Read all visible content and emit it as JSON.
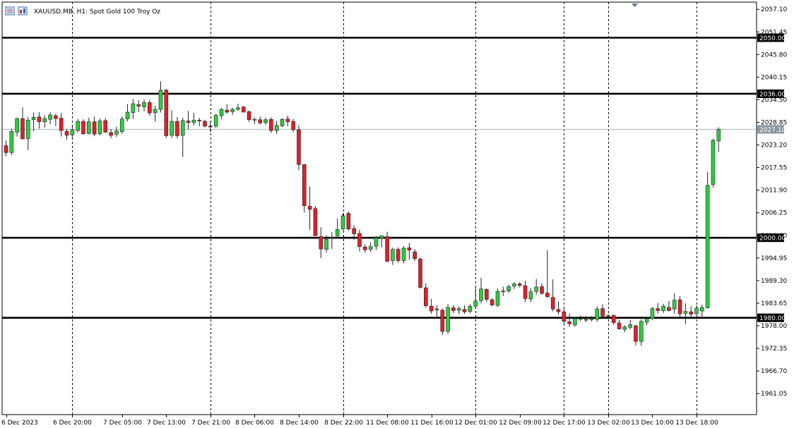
{
  "header": {
    "symbol_label": "XAUUSD.MB, H1:  Spot Gold 100 Troy Oz"
  },
  "icons": [
    "chart-window-icon",
    "chart-properties-icon"
  ],
  "colors": {
    "bull": "#2ecc40",
    "bear": "#e0202a",
    "wick": "#222222",
    "grid": "#000000",
    "current_price_line": "#a8b4bc",
    "current_price_tag": "#8a96a0",
    "level_line": "#000000"
  },
  "chart_data": {
    "type": "candlestick",
    "title": "XAUUSD.MB, H1:  Spot Gold 100 Troy Oz",
    "ylim": [
      1955.8,
      2058.9
    ],
    "y_ticks": [
      2057.1,
      2051.45,
      2045.8,
      2040.15,
      2034.5,
      2028.85,
      2023.2,
      2017.55,
      2011.9,
      2006.25,
      2000.6,
      1994.95,
      1989.3,
      1983.65,
      1978.0,
      1972.35,
      1966.7,
      1961.05
    ],
    "y_tick_labels": [
      "2057.10",
      "2051.45",
      "2045.80",
      "2040.15",
      "2034.50",
      "2028.85",
      "2023.20",
      "2017.55",
      "2011.90",
      "2006.25",
      "2000.60",
      "1994.95",
      "1989.30",
      "1983.65",
      "1978.00",
      "1972.35",
      "1966.70",
      "1961.05"
    ],
    "x_labels": [
      "6 Dec 2023",
      "6 Dec 20:00",
      "7 Dec 05:00",
      "7 Dec 13:00",
      "7 Dec 21:00",
      "8 Dec 06:00",
      "8 Dec 14:00",
      "8 Dec 22:00",
      "11 Dec 08:00",
      "11 Dec 16:00",
      "12 Dec 01:00",
      "12 Dec 09:00",
      "12 Dec 17:00",
      "13 Dec 02:00",
      "13 Dec 10:00",
      "13 Dec 18:00"
    ],
    "x_label_bars": [
      0,
      12,
      21,
      29,
      37,
      45,
      53,
      61,
      69,
      77,
      85,
      93,
      101,
      109,
      117,
      125
    ],
    "vertical_grid_bars": [
      12,
      37,
      61,
      85,
      101,
      109,
      125
    ],
    "horizontal_levels": [
      {
        "price": 2050.0,
        "label": "2050.00"
      },
      {
        "price": 2036.0,
        "label": "2036.00"
      },
      {
        "price": 2000.0,
        "label": "2000.00"
      },
      {
        "price": 1980.0,
        "label": "1980.00"
      }
    ],
    "current_price": {
      "price": 2027.1,
      "label": "2027.10"
    },
    "ohlc": [
      [
        2023.0,
        2024.3,
        2020.4,
        2021.3
      ],
      [
        2021.3,
        2027.3,
        2020.6,
        2026.6
      ],
      [
        2026.4,
        2030.0,
        2025.3,
        2029.8
      ],
      [
        2029.8,
        2032.6,
        2024.7,
        2024.7
      ],
      [
        2024.8,
        2030.2,
        2021.9,
        2029.4
      ],
      [
        2029.5,
        2031.3,
        2026.6,
        2030.1
      ],
      [
        2030.2,
        2031.4,
        2027.3,
        2029.0
      ],
      [
        2029.0,
        2030.6,
        2027.5,
        2029.8
      ],
      [
        2029.6,
        2031.4,
        2028.4,
        2030.7
      ],
      [
        2030.5,
        2031.0,
        2027.9,
        2029.8
      ],
      [
        2029.9,
        2031.2,
        2025.3,
        2026.8
      ],
      [
        2026.6,
        2027.2,
        2024.5,
        2025.6
      ],
      [
        2025.7,
        2028.0,
        2024.8,
        2027.0
      ],
      [
        2026.8,
        2029.7,
        2026.3,
        2029.1
      ],
      [
        2029.1,
        2029.6,
        2025.7,
        2026.0
      ],
      [
        2026.1,
        2030.0,
        2025.8,
        2029.0
      ],
      [
        2029.0,
        2030.3,
        2025.4,
        2025.9
      ],
      [
        2026.0,
        2029.8,
        2025.6,
        2029.2
      ],
      [
        2029.3,
        2029.9,
        2026.2,
        2026.4
      ],
      [
        2026.3,
        2027.2,
        2024.9,
        2025.6
      ],
      [
        2025.9,
        2027.7,
        2025.2,
        2026.7
      ],
      [
        2026.5,
        2030.4,
        2026.0,
        2029.7
      ],
      [
        2029.7,
        2033.4,
        2029.1,
        2031.4
      ],
      [
        2031.3,
        2034.7,
        2029.7,
        2033.5
      ],
      [
        2033.3,
        2034.4,
        2031.4,
        2032.9
      ],
      [
        2032.7,
        2034.6,
        2031.6,
        2033.8
      ],
      [
        2033.8,
        2034.5,
        2030.5,
        2031.2
      ],
      [
        2031.3,
        2033.0,
        2029.0,
        2032.1
      ],
      [
        2032.1,
        2039.1,
        2031.3,
        2036.9
      ],
      [
        2036.9,
        2037.2,
        2025.0,
        2025.5
      ],
      [
        2025.6,
        2031.8,
        2024.9,
        2029.1
      ],
      [
        2029.1,
        2030.2,
        2024.8,
        2025.5
      ],
      [
        2025.6,
        2030.0,
        2020.2,
        2029.3
      ],
      [
        2029.2,
        2031.7,
        2027.1,
        2028.8
      ],
      [
        2028.8,
        2031.2,
        2028.1,
        2029.4
      ],
      [
        2029.4,
        2030.0,
        2027.9,
        2029.2
      ],
      [
        2029.1,
        2029.5,
        2027.6,
        2027.9
      ],
      [
        2027.9,
        2028.8,
        2026.5,
        2027.7
      ],
      [
        2027.9,
        2031.0,
        2027.5,
        2030.6
      ],
      [
        2030.5,
        2032.4,
        2029.6,
        2032.1
      ],
      [
        2031.9,
        2033.4,
        2031.0,
        2031.4
      ],
      [
        2031.5,
        2032.5,
        2030.7,
        2032.1
      ],
      [
        2032.1,
        2033.5,
        2031.7,
        2032.5
      ],
      [
        2032.7,
        2032.9,
        2031.7,
        2031.4
      ],
      [
        2031.5,
        2031.8,
        2029.0,
        2029.5
      ],
      [
        2029.4,
        2030.1,
        2028.4,
        2029.6
      ],
      [
        2029.5,
        2030.3,
        2028.4,
        2028.7
      ],
      [
        2028.8,
        2030.0,
        2028.2,
        2029.5
      ],
      [
        2029.6,
        2030.1,
        2026.2,
        2026.8
      ],
      [
        2026.8,
        2029.2,
        2026.0,
        2028.1
      ],
      [
        2028.0,
        2029.9,
        2027.7,
        2029.6
      ],
      [
        2029.7,
        2030.5,
        2027.9,
        2029.0
      ],
      [
        2029.1,
        2029.7,
        2026.4,
        2027.0
      ],
      [
        2027.0,
        2028.1,
        2016.9,
        2018.3
      ],
      [
        2018.3,
        2018.4,
        2006.3,
        2008.0
      ],
      [
        2007.9,
        2012.8,
        2002.0,
        2007.1
      ],
      [
        2007.3,
        2007.9,
        2000.5,
        2000.5
      ],
      [
        2000.3,
        2002.6,
        1994.9,
        1997.2
      ],
      [
        1997.1,
        2000.6,
        1996.3,
        1999.6
      ],
      [
        1999.8,
        2001.4,
        1997.2,
        2000.0
      ],
      [
        2000.5,
        2004.8,
        2000.0,
        2002.1
      ],
      [
        2002.2,
        2006.2,
        2001.8,
        2005.5
      ],
      [
        2006.1,
        2006.6,
        2001.8,
        2002.2
      ],
      [
        2002.3,
        2003.1,
        1999.5,
        2001.0
      ],
      [
        2001.1,
        2002.0,
        1996.6,
        1997.8
      ],
      [
        1997.7,
        1998.3,
        1996.3,
        1997.0
      ],
      [
        1997.1,
        1998.9,
        1996.5,
        1997.8
      ],
      [
        1997.9,
        2000.4,
        1996.9,
        2000.0
      ],
      [
        1999.9,
        2000.6,
        1997.6,
        2000.5
      ],
      [
        2000.3,
        2001.5,
        1993.9,
        1994.1
      ],
      [
        1994.3,
        1997.5,
        1993.2,
        1997.1
      ],
      [
        1997.1,
        1997.6,
        1993.7,
        1994.3
      ],
      [
        1994.3,
        1997.9,
        1993.6,
        1997.4
      ],
      [
        1997.5,
        1998.7,
        1994.5,
        1996.9
      ],
      [
        1996.5,
        1997.2,
        1994.2,
        1994.8
      ],
      [
        1994.7,
        1995.1,
        1987.3,
        1987.6
      ],
      [
        1987.5,
        1988.6,
        1982.5,
        1983.0
      ],
      [
        1982.9,
        1984.7,
        1981.0,
        1981.7
      ],
      [
        1982.2,
        1983.1,
        1980.1,
        1982.0
      ],
      [
        1981.9,
        1982.3,
        1975.7,
        1976.6
      ],
      [
        1976.6,
        1983.4,
        1976.0,
        1982.6
      ],
      [
        1982.5,
        1983.2,
        1981.2,
        1981.8
      ],
      [
        1981.9,
        1982.8,
        1980.9,
        1982.3
      ],
      [
        1982.1,
        1983.1,
        1981.0,
        1981.5
      ],
      [
        1981.6,
        1983.4,
        1981.1,
        1982.9
      ],
      [
        1982.9,
        1987.6,
        1982.3,
        1984.2
      ],
      [
        1984.3,
        1990.0,
        1983.6,
        1987.2
      ],
      [
        1987.1,
        1987.3,
        1984.0,
        1984.6
      ],
      [
        1984.5,
        1984.9,
        1982.9,
        1983.2
      ],
      [
        1983.1,
        1987.3,
        1982.7,
        1986.6
      ],
      [
        1986.7,
        1987.8,
        1985.4,
        1986.5
      ],
      [
        1986.7,
        1988.3,
        1986.2,
        1987.8
      ],
      [
        1987.9,
        1988.9,
        1987.2,
        1988.5
      ],
      [
        1988.5,
        1988.9,
        1987.6,
        1988.1
      ],
      [
        1988.0,
        1989.3,
        1984.0,
        1984.8
      ],
      [
        1984.7,
        1987.4,
        1983.9,
        1986.5
      ],
      [
        1986.6,
        1989.7,
        1985.8,
        1987.7
      ],
      [
        1987.8,
        1988.6,
        1985.8,
        1986.1
      ],
      [
        1986.2,
        1996.9,
        1984.9,
        1985.3
      ],
      [
        1985.1,
        1989.6,
        1981.6,
        1982.2
      ],
      [
        1982.1,
        1984.1,
        1980.8,
        1981.5
      ],
      [
        1981.5,
        1982.5,
        1978.6,
        1979.1
      ],
      [
        1979.0,
        1981.1,
        1977.7,
        1978.5
      ],
      [
        1978.2,
        1980.2,
        1977.8,
        1979.8
      ],
      [
        1979.6,
        1980.5,
        1979.2,
        1979.8
      ],
      [
        1979.6,
        1980.4,
        1978.9,
        1979.5
      ],
      [
        1979.5,
        1980.4,
        1979.1,
        1979.8
      ],
      [
        1979.6,
        1982.8,
        1979.0,
        1982.2
      ],
      [
        1982.3,
        1983.4,
        1980.1,
        1980.4
      ],
      [
        1980.3,
        1980.9,
        1979.7,
        1980.5
      ],
      [
        1980.6,
        1980.8,
        1978.3,
        1978.8
      ],
      [
        1978.7,
        1979.5,
        1977.1,
        1977.2
      ],
      [
        1977.1,
        1978.1,
        1976.4,
        1977.7
      ],
      [
        1977.6,
        1979.5,
        1977.1,
        1978.3
      ],
      [
        1978.0,
        1978.3,
        1973.1,
        1974.1
      ],
      [
        1974.1,
        1979.6,
        1973.0,
        1979.1
      ],
      [
        1978.9,
        1980.0,
        1978.1,
        1979.8
      ],
      [
        1979.8,
        1982.7,
        1979.4,
        1982.3
      ],
      [
        1982.3,
        1983.7,
        1981.0,
        1981.8
      ],
      [
        1981.8,
        1983.5,
        1981.2,
        1982.9
      ],
      [
        1982.6,
        1984.2,
        1981.6,
        1981.8
      ],
      [
        1982.2,
        1986.1,
        1981.0,
        1984.4
      ],
      [
        1984.5,
        1985.4,
        1980.3,
        1981.0
      ],
      [
        1981.1,
        1983.6,
        1978.4,
        1981.6
      ],
      [
        1981.5,
        1982.9,
        1980.1,
        1980.9
      ],
      [
        1981.0,
        1983.1,
        1980.7,
        1982.4
      ],
      [
        1981.7,
        1983.3,
        1980.3,
        1982.6
      ],
      [
        1982.5,
        2016.5,
        1982.3,
        2013.1
      ],
      [
        2013.3,
        2024.8,
        2012.6,
        2024.3
      ],
      [
        2024.2,
        2027.6,
        2021.4,
        2027.1
      ]
    ]
  }
}
